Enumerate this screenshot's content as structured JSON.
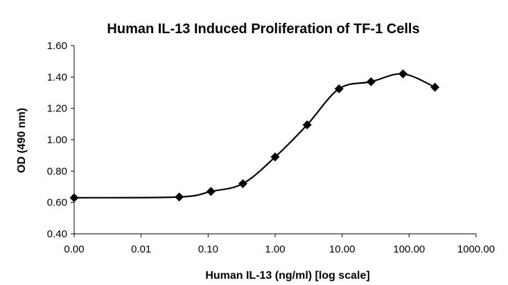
{
  "chart_data": {
    "type": "line",
    "title": "Human IL-13 Induced Proliferation of TF-1 Cells",
    "xlabel": "Human IL-13 (ng/ml) [log scale]",
    "ylabel": "OD (490 nm)",
    "x_scale": "log",
    "x_ticks": [
      "0.00",
      "0.01",
      "0.10",
      "1.00",
      "10.00",
      "100.00",
      "1000.00"
    ],
    "y_ticks": [
      "0.40",
      "0.60",
      "0.80",
      "1.00",
      "1.20",
      "1.40",
      "1.60"
    ],
    "ylim": [
      0.4,
      1.6
    ],
    "grid": false,
    "legend": "none",
    "colors": {
      "line": "#000000",
      "marker": "#000000"
    },
    "marker": "diamond",
    "series": [
      {
        "x": [
          0.001,
          0.037,
          0.11,
          0.33,
          1.0,
          3.0,
          9.0,
          27.0,
          81.0,
          243.0
        ],
        "y": [
          0.63,
          0.635,
          0.67,
          0.72,
          0.89,
          1.095,
          1.325,
          1.37,
          1.42,
          1.335
        ]
      }
    ]
  }
}
